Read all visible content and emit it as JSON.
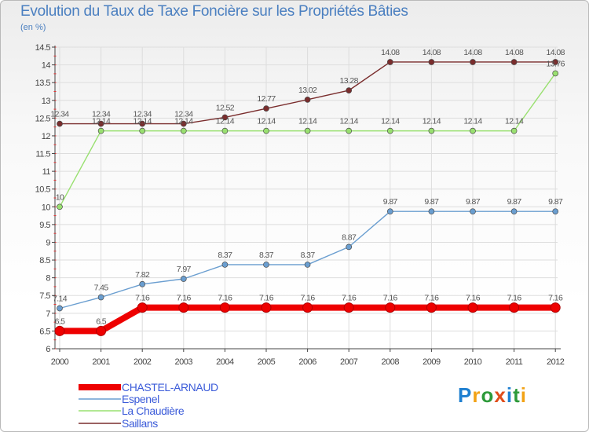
{
  "header": {
    "title": "Evolution du Taux de Taxe Foncière sur les Propriétés Bâties",
    "subtitle": "(en %)"
  },
  "logo": {
    "text": "Proxiti",
    "letters": [
      {
        "ch": "P",
        "color": "#1e7fd0"
      },
      {
        "ch": "r",
        "color": "#f2a216"
      },
      {
        "ch": "o",
        "color": "#2d9a3a"
      },
      {
        "ch": "x",
        "color": "#e04d1a"
      },
      {
        "ch": "i",
        "color": "#1e7fd0"
      },
      {
        "ch": "t",
        "color": "#2d9a3a"
      },
      {
        "ch": "i",
        "color": "#f2a216"
      }
    ]
  },
  "chart_data": {
    "type": "line",
    "title": "Evolution du Taux de Taxe Foncière sur les Propriétés Bâties",
    "ylabel": "(en %)",
    "xlabel": "",
    "x": [
      "2000",
      "2001",
      "2002",
      "2003",
      "2004",
      "2005",
      "2006",
      "2007",
      "2008",
      "2009",
      "2010",
      "2011",
      "2012"
    ],
    "ylim": [
      6,
      14.5
    ],
    "yticks": [
      6,
      6.5,
      7,
      7.5,
      8,
      8.5,
      9,
      9.5,
      10,
      10.5,
      11,
      11.5,
      12,
      12.5,
      13,
      13.5,
      14,
      14.5
    ],
    "grid": true,
    "legend_position": "bottom",
    "series": [
      {
        "name": "CHASTEL-ARNAUD",
        "color": "#ee0000",
        "values": [
          6.5,
          6.5,
          7.16,
          7.16,
          7.16,
          7.16,
          7.16,
          7.16,
          7.16,
          7.16,
          7.16,
          7.16,
          7.16
        ]
      },
      {
        "name": "Espenel",
        "color": "#6a9ed0",
        "values": [
          7.14,
          7.45,
          7.82,
          7.97,
          8.37,
          8.37,
          8.37,
          8.87,
          9.87,
          9.87,
          9.87,
          9.87,
          9.87
        ]
      },
      {
        "name": "La Chaudière",
        "color": "#99e070",
        "values": [
          10,
          12.14,
          12.14,
          12.14,
          12.14,
          12.14,
          12.14,
          12.14,
          12.14,
          12.14,
          12.14,
          12.14,
          13.76
        ]
      },
      {
        "name": "Saillans",
        "color": "#7a2d2d",
        "values": [
          12.34,
          12.34,
          12.34,
          12.34,
          12.52,
          12.77,
          13.02,
          13.28,
          14.08,
          14.08,
          14.08,
          14.08,
          14.08
        ]
      }
    ],
    "label_colors": {
      "series_label": "#555555",
      "axis": "#444444",
      "legend": "#3b5bd9"
    }
  }
}
